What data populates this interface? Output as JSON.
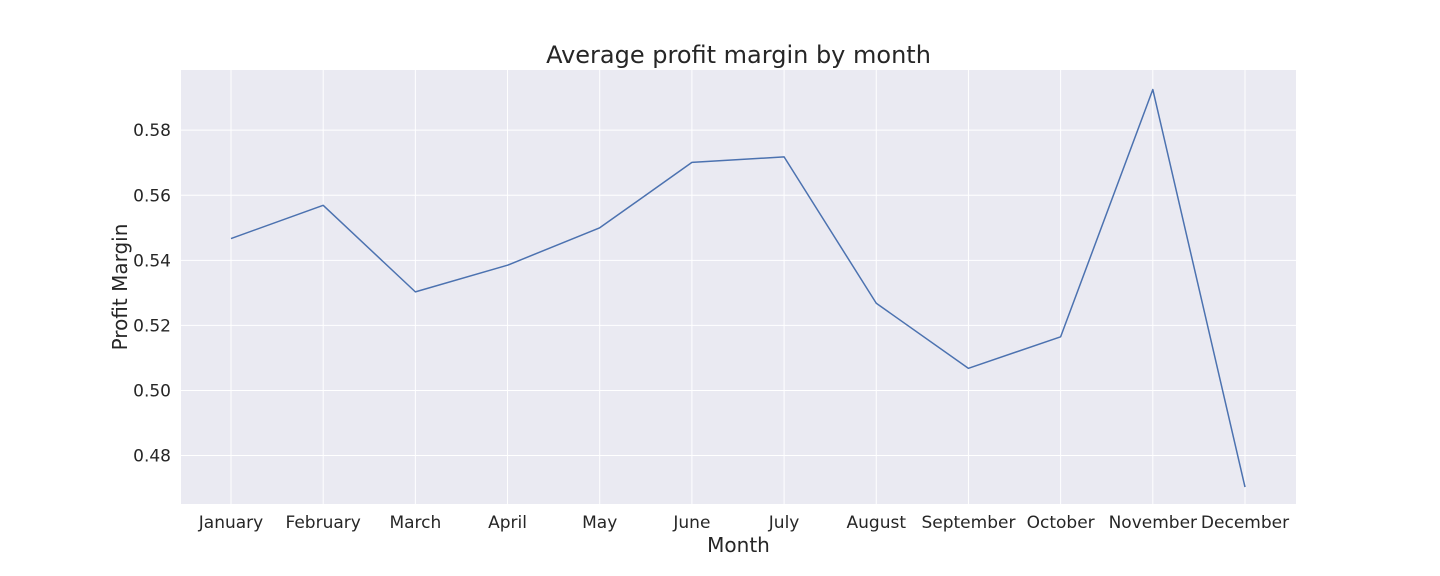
{
  "colors": {
    "plot_background": "#EAEAF2",
    "grid": "#FFFFFF",
    "series_line": "#4C72B0",
    "text": "#262626"
  },
  "chart_data": {
    "type": "line",
    "title": "Average profit margin by month",
    "xlabel": "Month",
    "ylabel": "Profit Margin",
    "categories": [
      "January",
      "February",
      "March",
      "April",
      "May",
      "June",
      "July",
      "August",
      "September",
      "October",
      "November",
      "December"
    ],
    "series": [
      {
        "values": [
          0.5467,
          0.5569,
          0.5303,
          0.5385,
          0.55,
          0.5701,
          0.5718,
          0.5268,
          0.5068,
          0.5165,
          0.5925,
          0.4703
        ]
      }
    ],
    "yticks": [
      "0.48",
      "0.50",
      "0.52",
      "0.54",
      "0.56",
      "0.58"
    ],
    "ylim": [
      0.4651,
      0.5985
    ],
    "grid": true,
    "legend": "none"
  }
}
